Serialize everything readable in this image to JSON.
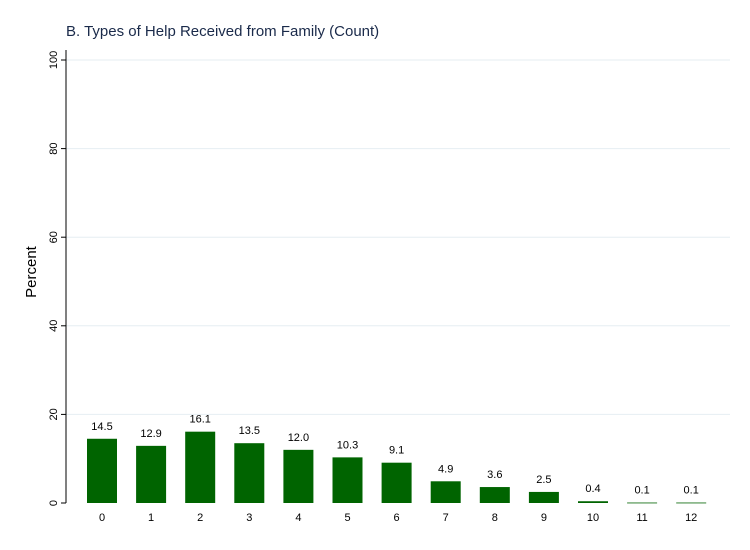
{
  "chart_data": {
    "type": "bar",
    "title": "B. Types of Help Received from Family (Count)",
    "xlabel": "",
    "ylabel": "Percent",
    "categories": [
      "0",
      "1",
      "2",
      "3",
      "4",
      "5",
      "6",
      "7",
      "8",
      "9",
      "10",
      "11",
      "12"
    ],
    "values": [
      14.5,
      12.9,
      16.1,
      13.5,
      12.0,
      10.3,
      9.1,
      4.9,
      3.6,
      2.5,
      0.4,
      0.1,
      0.1
    ],
    "value_labels": [
      "14.5",
      "12.9",
      "16.1",
      "13.5",
      "12.0",
      "10.3",
      "9.1",
      "4.9",
      "3.6",
      "2.5",
      "0.4",
      "0.1",
      "0.1"
    ],
    "yticks": [
      "0",
      "20",
      "40",
      "60",
      "80",
      "100"
    ],
    "ylim": [
      0,
      100
    ],
    "grid": true,
    "bar_color": "#006400",
    "grid_color": "#e6eef2",
    "title_color": "#1a2a4a"
  }
}
